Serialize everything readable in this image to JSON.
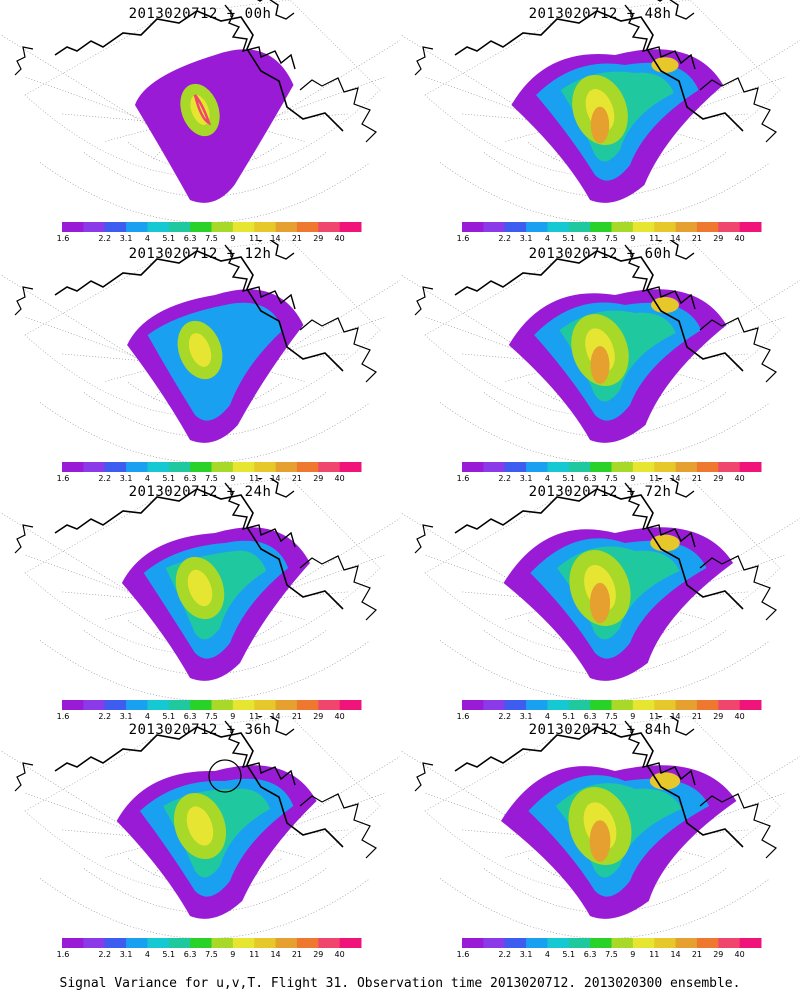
{
  "panels": [
    {
      "title": "2013020712 + 00h"
    },
    {
      "title": "2013020712 + 48h"
    },
    {
      "title": "2013020712 + 12h"
    },
    {
      "title": "2013020712 + 60h"
    },
    {
      "title": "2013020712 + 24h"
    },
    {
      "title": "2013020712 + 72h"
    },
    {
      "title": "2013020712 + 36h"
    },
    {
      "title": "2013020712 + 84h"
    }
  ],
  "colorbar": {
    "labels": [
      "1.6",
      "2.2",
      "3.1",
      "4",
      "5.1",
      "6.3",
      "7.5",
      "9",
      "11",
      "14",
      "21",
      "29",
      "40"
    ],
    "colors": [
      "#9a1bd6",
      "#8a3ae8",
      "#3e5cf0",
      "#1aa0f0",
      "#15c8d2",
      "#20c8a0",
      "#28d228",
      "#a8d828",
      "#e6e632",
      "#e6c82a",
      "#e6a030",
      "#ee7830",
      "#f0466e",
      "#f0147a"
    ]
  },
  "caption": "Signal Variance for u,v,T. Flight 31. Observation time 2013020712. 2013020300 ensemble."
}
